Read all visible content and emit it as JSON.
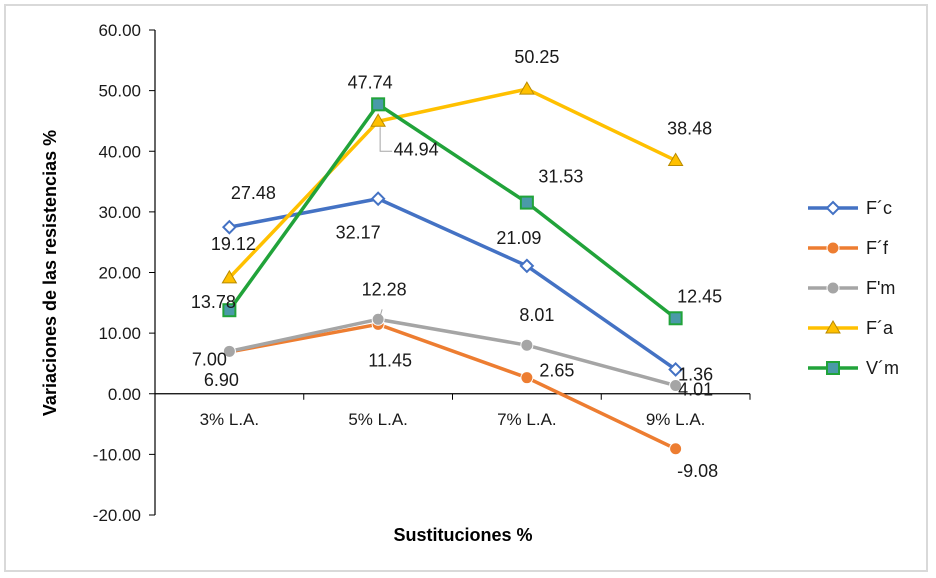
{
  "chart_data": {
    "type": "line",
    "title": "",
    "xlabel": "Sustituciones %",
    "ylabel": "Variaciones de las resistencias %",
    "categories": [
      "3% L.A.",
      "5% L.A.",
      "7% L.A.",
      "9% L.A."
    ],
    "ylim": [
      -20,
      60
    ],
    "yticks": [
      "60.00",
      "50.00",
      "40.00",
      "30.00",
      "20.00",
      "10.00",
      "0.00",
      "-10.00",
      "-20.00"
    ],
    "grid": false,
    "legend_position": "right",
    "series": [
      {
        "name": "F´c",
        "values": [
          27.48,
          32.17,
          21.09,
          4.01
        ],
        "labels": [
          "27.48",
          "32.17",
          "21.09",
          "4.01"
        ],
        "color": "#4472c4",
        "marker": "diamond"
      },
      {
        "name": "F´f",
        "values": [
          6.9,
          11.45,
          2.65,
          -9.08
        ],
        "labels": [
          "6.90",
          "11.45",
          "2.65",
          "-9.08"
        ],
        "color": "#ed7d31",
        "marker": "circle"
      },
      {
        "name": "F'm",
        "values": [
          7.0,
          12.28,
          8.01,
          1.36
        ],
        "labels": [
          "7.00",
          "12.28",
          "8.01",
          "1.36"
        ],
        "color": "#a5a5a5",
        "marker": "circle"
      },
      {
        "name": "F´a",
        "values": [
          19.12,
          44.94,
          50.25,
          38.48
        ],
        "labels": [
          "19.12",
          "44.94",
          "50.25",
          "38.48"
        ],
        "color": "#ffc000",
        "marker": "triangle"
      },
      {
        "name": "V´m",
        "values": [
          13.78,
          47.74,
          31.53,
          12.45
        ],
        "labels": [
          "13.78",
          "47.74",
          "31.53",
          "12.45"
        ],
        "color": "#21a33a",
        "marker": "square"
      }
    ]
  }
}
